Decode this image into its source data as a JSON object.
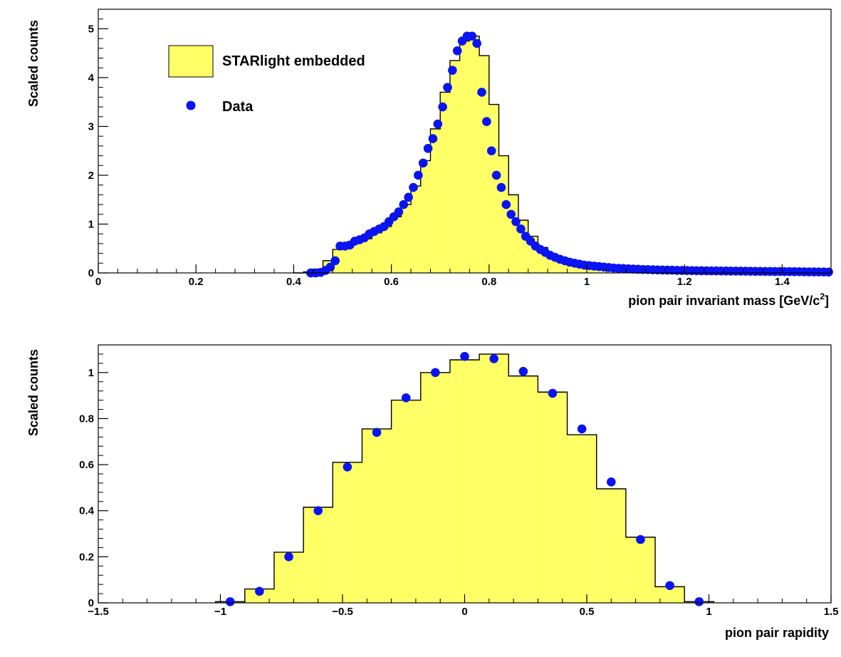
{
  "colors": {
    "histogram_fill": "#ffff66",
    "histogram_line": "#000000",
    "data_marker": "#0a14f0"
  },
  "legend": {
    "sim_label": "STARlight embedded",
    "data_label": "Data",
    "placement": "top-left (top panel)"
  },
  "chart_data": [
    {
      "type": "histogram",
      "name": "mass",
      "xlabel": "pion pair invariant mass [GeV/c",
      "xlabel_sup": "2",
      "xlabel_close": "]",
      "ylabel": "Scaled counts",
      "xlim": [
        0,
        1.5
      ],
      "ylim": [
        0,
        5.4
      ],
      "xticks": [
        0,
        0.2,
        0.4,
        0.6,
        0.8,
        1,
        1.2,
        1.4
      ],
      "xtick_labels": [
        "0",
        "0.2",
        "0.4",
        "0.6",
        "0.8",
        "1",
        "1.2",
        "1.4"
      ],
      "yticks": [
        0,
        1,
        2,
        3,
        4,
        5
      ],
      "ytick_labels": [
        "0",
        "1",
        "2",
        "3",
        "4",
        "5"
      ],
      "grid": false,
      "series": [
        {
          "name": "STARlight embedded",
          "kind": "histogram",
          "bin_edges": [
            0.4,
            0.42,
            0.44,
            0.46,
            0.48,
            0.5,
            0.52,
            0.54,
            0.56,
            0.58,
            0.6,
            0.62,
            0.64,
            0.66,
            0.68,
            0.7,
            0.72,
            0.74,
            0.76,
            0.78,
            0.8,
            0.82,
            0.84,
            0.86,
            0.88,
            0.9,
            0.92,
            0.94,
            0.96,
            0.98,
            1.0,
            1.05,
            1.1,
            1.15,
            1.2,
            1.25,
            1.3,
            1.35,
            1.4,
            1.45,
            1.5
          ],
          "values": [
            0.0,
            0.02,
            0.08,
            0.25,
            0.48,
            0.55,
            0.62,
            0.7,
            0.82,
            0.95,
            1.15,
            1.4,
            1.78,
            2.3,
            2.95,
            3.7,
            4.35,
            4.75,
            4.85,
            4.45,
            3.45,
            2.4,
            1.6,
            1.08,
            0.75,
            0.52,
            0.37,
            0.27,
            0.2,
            0.15,
            0.11,
            0.09,
            0.07,
            0.06,
            0.05,
            0.045,
            0.04,
            0.035,
            0.03,
            0.03
          ]
        },
        {
          "name": "Data",
          "kind": "points",
          "x": [
            0.435,
            0.445,
            0.455,
            0.465,
            0.475,
            0.485,
            0.495,
            0.505,
            0.515,
            0.525,
            0.535,
            0.545,
            0.555,
            0.565,
            0.575,
            0.585,
            0.595,
            0.605,
            0.615,
            0.625,
            0.635,
            0.645,
            0.655,
            0.665,
            0.675,
            0.685,
            0.695,
            0.705,
            0.715,
            0.725,
            0.735,
            0.745,
            0.755,
            0.765,
            0.775,
            0.785,
            0.795,
            0.805,
            0.815,
            0.825,
            0.835,
            0.845,
            0.855,
            0.865,
            0.875,
            0.885,
            0.895,
            0.905,
            0.915,
            0.925,
            0.935,
            0.945,
            0.955,
            0.965,
            0.975,
            0.985,
            0.995,
            1.005,
            1.015,
            1.025,
            1.035,
            1.045,
            1.055,
            1.065,
            1.075,
            1.085,
            1.095,
            1.105,
            1.115,
            1.125,
            1.135,
            1.145,
            1.155,
            1.165,
            1.175,
            1.185,
            1.195,
            1.205,
            1.215,
            1.225,
            1.235,
            1.245,
            1.255,
            1.265,
            1.275,
            1.285,
            1.295,
            1.305,
            1.315,
            1.325,
            1.335,
            1.345,
            1.355,
            1.365,
            1.375,
            1.385,
            1.395,
            1.405,
            1.415,
            1.425,
            1.435,
            1.445,
            1.455,
            1.465,
            1.475,
            1.485,
            1.495
          ],
          "y": [
            0.0,
            0.0,
            0.01,
            0.05,
            0.12,
            0.25,
            0.55,
            0.55,
            0.57,
            0.65,
            0.68,
            0.72,
            0.8,
            0.85,
            0.9,
            0.95,
            1.05,
            1.15,
            1.25,
            1.4,
            1.55,
            1.75,
            2.0,
            2.25,
            2.55,
            2.75,
            3.05,
            3.4,
            3.8,
            4.15,
            4.55,
            4.75,
            4.85,
            4.85,
            4.7,
            3.7,
            3.1,
            2.5,
            2.0,
            1.75,
            1.4,
            1.2,
            1.05,
            0.9,
            0.75,
            0.65,
            0.55,
            0.48,
            0.42,
            0.36,
            0.32,
            0.28,
            0.25,
            0.22,
            0.2,
            0.18,
            0.16,
            0.15,
            0.14,
            0.13,
            0.12,
            0.11,
            0.1,
            0.095,
            0.09,
            0.085,
            0.08,
            0.075,
            0.07,
            0.068,
            0.065,
            0.062,
            0.06,
            0.058,
            0.055,
            0.052,
            0.05,
            0.048,
            0.046,
            0.045,
            0.044,
            0.043,
            0.042,
            0.041,
            0.04,
            0.039,
            0.038,
            0.037,
            0.036,
            0.035,
            0.034,
            0.033,
            0.032,
            0.031,
            0.03,
            0.029,
            0.028,
            0.027,
            0.026,
            0.025,
            0.024,
            0.023,
            0.022,
            0.021,
            0.02,
            0.019,
            0.018
          ]
        }
      ]
    },
    {
      "type": "histogram",
      "name": "rapidity",
      "xlabel": "pion pair rapidity",
      "ylabel": "Scaled counts",
      "xlim": [
        -1.5,
        1.5
      ],
      "ylim": [
        0,
        1.12
      ],
      "xticks": [
        -1.5,
        -1,
        -0.5,
        0,
        0.5,
        1,
        1.5
      ],
      "xtick_labels": [
        "−1.5",
        "−1",
        "−0.5",
        "0",
        "0.5",
        "1",
        "1.5"
      ],
      "yticks": [
        0,
        0.2,
        0.4,
        0.6,
        0.8,
        1.0
      ],
      "ytick_labels": [
        "0",
        "0.2",
        "0.4",
        "0.6",
        "0.8",
        "1"
      ],
      "grid": false,
      "series": [
        {
          "name": "STARlight embedded",
          "kind": "histogram",
          "bin_edges": [
            -1.02,
            -0.9,
            -0.78,
            -0.66,
            -0.54,
            -0.42,
            -0.3,
            -0.18,
            -0.06,
            0.06,
            0.18,
            0.3,
            0.42,
            0.54,
            0.66,
            0.78,
            0.9,
            1.02
          ],
          "values": [
            0.005,
            0.06,
            0.22,
            0.415,
            0.61,
            0.755,
            0.88,
            1.0,
            1.055,
            1.08,
            0.985,
            0.915,
            0.73,
            0.495,
            0.285,
            0.07,
            0.005
          ]
        },
        {
          "name": "Data",
          "kind": "points",
          "x": [
            -0.96,
            -0.84,
            -0.72,
            -0.6,
            -0.48,
            -0.36,
            -0.24,
            -0.12,
            0.0,
            0.12,
            0.24,
            0.36,
            0.48,
            0.6,
            0.72,
            0.84,
            0.96
          ],
          "y": [
            0.005,
            0.05,
            0.2,
            0.4,
            0.59,
            0.74,
            0.89,
            1.0,
            1.07,
            1.06,
            1.005,
            0.91,
            0.755,
            0.525,
            0.275,
            0.075,
            0.005
          ]
        }
      ]
    }
  ]
}
